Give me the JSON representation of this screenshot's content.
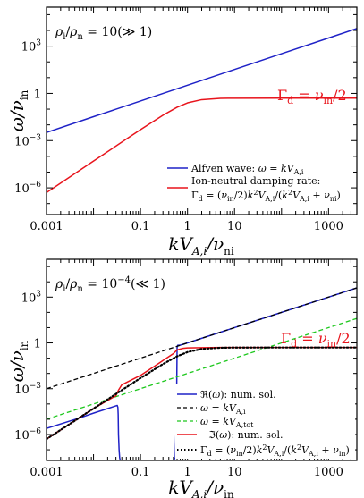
{
  "colors": {
    "alfven": "#1f22c7",
    "damping": "#e8141c",
    "black_dash": "#000000",
    "green_dash": "#1ec81e",
    "red_solid": "#e8141c",
    "black_dot": "#000000"
  },
  "chart_data": [
    {
      "type": "line",
      "scale": "log-log",
      "xlim": [
        0.001,
        4000
      ],
      "ylim": [
        2e-08,
        300000
      ],
      "xlabel": "kV_{A,i}/ν_ni",
      "ylabel": "ω/ν_in",
      "xticks": [
        "0.001",
        "0.1",
        "1",
        "10",
        "1000"
      ],
      "yticks": [
        "10^{-6}",
        "10^{-3}",
        "1",
        "10^{3}"
      ],
      "annotation": "ρ_i/ρ_n = 10(≫ 1)",
      "red_annotation": "Γ_d = ν_in/2",
      "legend_position": "bottom-right",
      "series": [
        {
          "name": "Alfven wave: ω = kV_{A,i}",
          "color": "alfven",
          "style": "solid",
          "x": [
            0.001,
            0.01,
            0.1,
            1,
            10,
            100,
            1000,
            4000
          ],
          "y": [
            0.0033,
            0.033,
            0.33,
            3.3,
            33,
            330,
            3300,
            13200
          ]
        },
        {
          "name": "Ion-neutral damping rate: Γ_d = (ν_in/2)k²V²_{A,i}/(k²V²_{A,i} + ν²_ni)",
          "color": "damping",
          "style": "solid",
          "x": [
            0.001,
            0.01,
            0.05,
            0.1,
            0.3,
            0.6,
            1,
            2,
            5,
            10,
            100,
            1000,
            4000
          ],
          "y": [
            5e-07,
            5e-05,
            0.00125,
            0.005,
            0.041,
            0.132,
            0.25,
            0.4,
            0.481,
            0.495,
            0.5,
            0.5,
            0.5
          ]
        }
      ]
    },
    {
      "type": "line",
      "scale": "log-log",
      "xlim": [
        0.001,
        4000
      ],
      "ylim": [
        2e-08,
        300000
      ],
      "xlabel": "kV_{A,i}/ν_in",
      "ylabel": "ω/ν_in",
      "xticks": [
        "0.001",
        "0.1",
        "1",
        "10",
        "1000"
      ],
      "yticks": [
        "10^{-6}",
        "10^{-3}",
        "1",
        "10^{3}"
      ],
      "annotation": "ρ_i/ρ_n = 10^{-4}(≪ 1)",
      "red_annotation": "Γ_d = ν_in/2",
      "legend_position": "bottom-right",
      "series": [
        {
          "name": "ℜ(ω): num. sol.",
          "color": "alfven",
          "style": "solid",
          "x": [
            0.001,
            0.005,
            0.01,
            0.02,
            0.03,
            0.032,
            0.033,
            0.0335,
            0.034,
            0.035,
            0.036,
            0.037,
            0.038,
            0.04
          ],
          "y": [
            2.5e-06,
            1.2e-05,
            2.5e-05,
            5e-05,
            7.5e-05,
            8e-05,
            6e-05,
            2e-05,
            1e-06,
            1e-07,
            3e-08,
            2e-08,
            2e-08,
            2e-08
          ],
          "x2": [
            0.4,
            0.5,
            0.55,
            0.58,
            0.6,
            0.62,
            0.7,
            1,
            2,
            10,
            100,
            1000,
            4000
          ],
          "y2": [
            2e-08,
            2e-08,
            3e-08,
            1e-05,
            0.5,
            0.7,
            0.72,
            1,
            2,
            10,
            100,
            1000,
            4000
          ]
        },
        {
          "name": "ω = kV_{A,i}",
          "color": "black_dash",
          "style": "dashed",
          "x": [
            0.001,
            4000
          ],
          "y": [
            0.001,
            4000
          ]
        },
        {
          "name": "ω = kV_{A,tot}",
          "color": "green_dash",
          "style": "dashed",
          "x": [
            0.001,
            4000
          ],
          "y": [
            1e-05,
            40
          ]
        },
        {
          "name": "−ℑ(ω): num. sol.",
          "color": "red_solid",
          "style": "solid",
          "x": [
            0.001,
            0.01,
            0.03,
            0.034,
            0.04,
            0.1,
            0.2,
            0.3,
            0.5,
            0.6,
            0.8,
            1,
            2,
            5,
            10,
            100,
            1000,
            4000
          ],
          "y": [
            5e-07,
            5e-05,
            0.00035,
            0.0008,
            0.0018,
            0.0075,
            0.03,
            0.07,
            0.2,
            0.35,
            0.44,
            0.47,
            0.49,
            0.5,
            0.5,
            0.5,
            0.5,
            0.5
          ]
        },
        {
          "name": "Γ_d = (ν_in/2)k²V²_{A,i}/(k²V²_{A,i} + ν²_in)",
          "color": "black_dot",
          "style": "dotted",
          "x": [
            0.001,
            0.01,
            0.05,
            0.1,
            0.3,
            0.6,
            1,
            2,
            5,
            10,
            100,
            1000,
            4000
          ],
          "y": [
            5e-07,
            5e-05,
            0.00125,
            0.005,
            0.041,
            0.132,
            0.25,
            0.4,
            0.481,
            0.495,
            0.5,
            0.5,
            0.5
          ]
        }
      ]
    }
  ]
}
